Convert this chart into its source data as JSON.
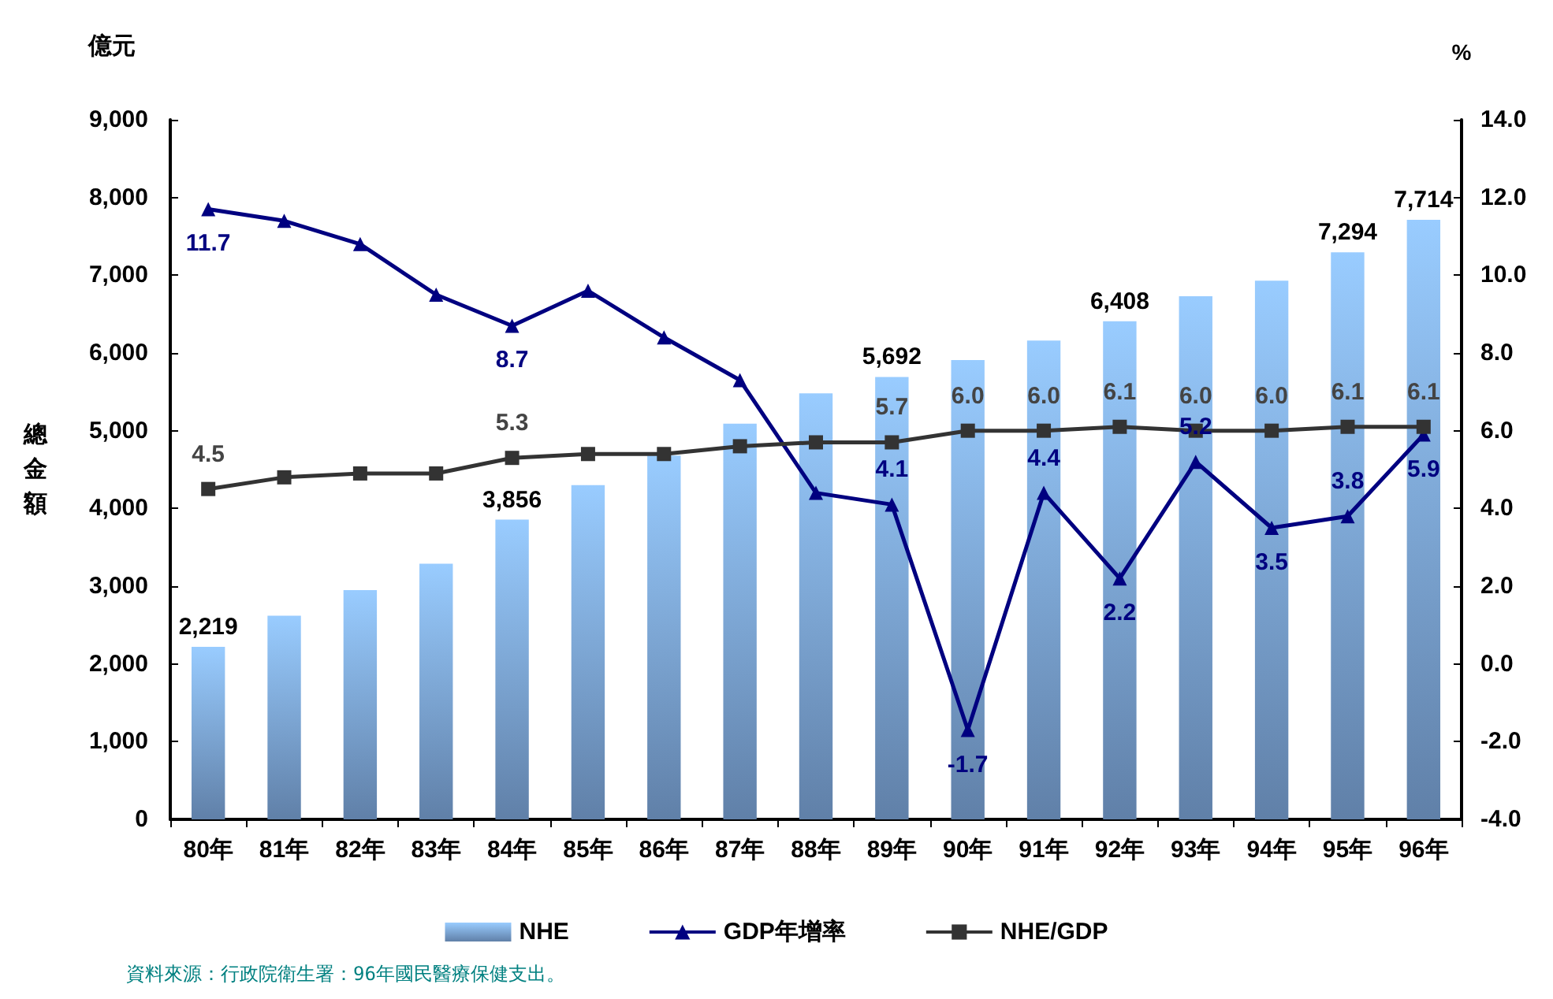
{
  "chart_data": {
    "type": "bar",
    "ylabel": "總金額",
    "y2label": "%",
    "categories": [
      "80年",
      "81年",
      "82年",
      "83年",
      "84年",
      "85年",
      "86年",
      "87年",
      "88年",
      "89年",
      "90年",
      "91年",
      "92年",
      "93年",
      "94年",
      "95年",
      "96年"
    ],
    "series": [
      {
        "name": "NHE",
        "color": "#99ccff",
        "values": [
          2219,
          2620,
          2950,
          3290,
          3856,
          4300,
          4680,
          5090,
          5480,
          5692,
          5910,
          6160,
          6408,
          6730,
          6930,
          7294,
          7714
        ],
        "value_labels": [
          "2,219",
          null,
          null,
          null,
          "3,856",
          null,
          null,
          null,
          null,
          "5,692",
          null,
          null,
          "6,408",
          null,
          null,
          "7,294",
          "7,714"
        ]
      },
      {
        "name": "GDP年增率",
        "type": "line",
        "axis": "y2",
        "color": "#000080",
        "marker": "triangle",
        "values": [
          11.7,
          11.4,
          10.8,
          9.5,
          8.7,
          9.6,
          8.4,
          7.3,
          4.4,
          4.1,
          -1.7,
          4.4,
          2.2,
          5.2,
          3.5,
          3.8,
          5.9
        ],
        "value_labels": [
          "11.7",
          null,
          null,
          null,
          "8.7",
          null,
          null,
          null,
          null,
          "4.1",
          "-1.7",
          "4.4",
          "2.2",
          "5.2",
          "3.5",
          "3.8",
          "5.9"
        ]
      },
      {
        "name": "NHE/GDP",
        "type": "line",
        "axis": "y2",
        "color": "#333333",
        "marker": "square",
        "values": [
          4.5,
          4.8,
          4.9,
          4.9,
          5.3,
          5.4,
          5.4,
          5.6,
          5.7,
          5.7,
          6.0,
          6.0,
          6.1,
          6.0,
          6.0,
          6.1,
          6.1
        ],
        "value_labels": [
          "4.5",
          null,
          null,
          null,
          "5.3",
          null,
          null,
          null,
          null,
          "5.7",
          "6.0",
          "6.0",
          "6.1",
          "6.0",
          "6.0",
          "6.1",
          "6.1"
        ]
      }
    ],
    "ylim": [
      0,
      9000
    ],
    "yticks": [
      {
        "value": 0,
        "label": "0"
      },
      {
        "value": 1000,
        "label": "1,000"
      },
      {
        "value": 2000,
        "label": "2,000"
      },
      {
        "value": 3000,
        "label": "3,000"
      },
      {
        "value": 4000,
        "label": "4,000"
      },
      {
        "value": 5000,
        "label": "5,000"
      },
      {
        "value": 6000,
        "label": "6,000"
      },
      {
        "value": 7000,
        "label": "7,000"
      },
      {
        "value": 8000,
        "label": "8,000"
      },
      {
        "value": 9000,
        "label": "9,000"
      }
    ],
    "y2lim": [
      -4,
      14
    ],
    "y2ticks": [
      {
        "value": -4,
        "label": "-4.0"
      },
      {
        "value": -2,
        "label": "-2.0"
      },
      {
        "value": 0,
        "label": "0.0"
      },
      {
        "value": 2,
        "label": "2.0"
      },
      {
        "value": 4,
        "label": "4.0"
      },
      {
        "value": 6,
        "label": "6.0"
      },
      {
        "value": 8,
        "label": "8.0"
      },
      {
        "value": 10,
        "label": "10.0"
      },
      {
        "value": 12,
        "label": "12.0"
      },
      {
        "value": 14,
        "label": "14.0"
      }
    ],
    "annotations": [
      "億元",
      "資料來源：行政院衛生署：96年國民醫療保健支出。"
    ],
    "legend": "bottom",
    "grid": false
  }
}
